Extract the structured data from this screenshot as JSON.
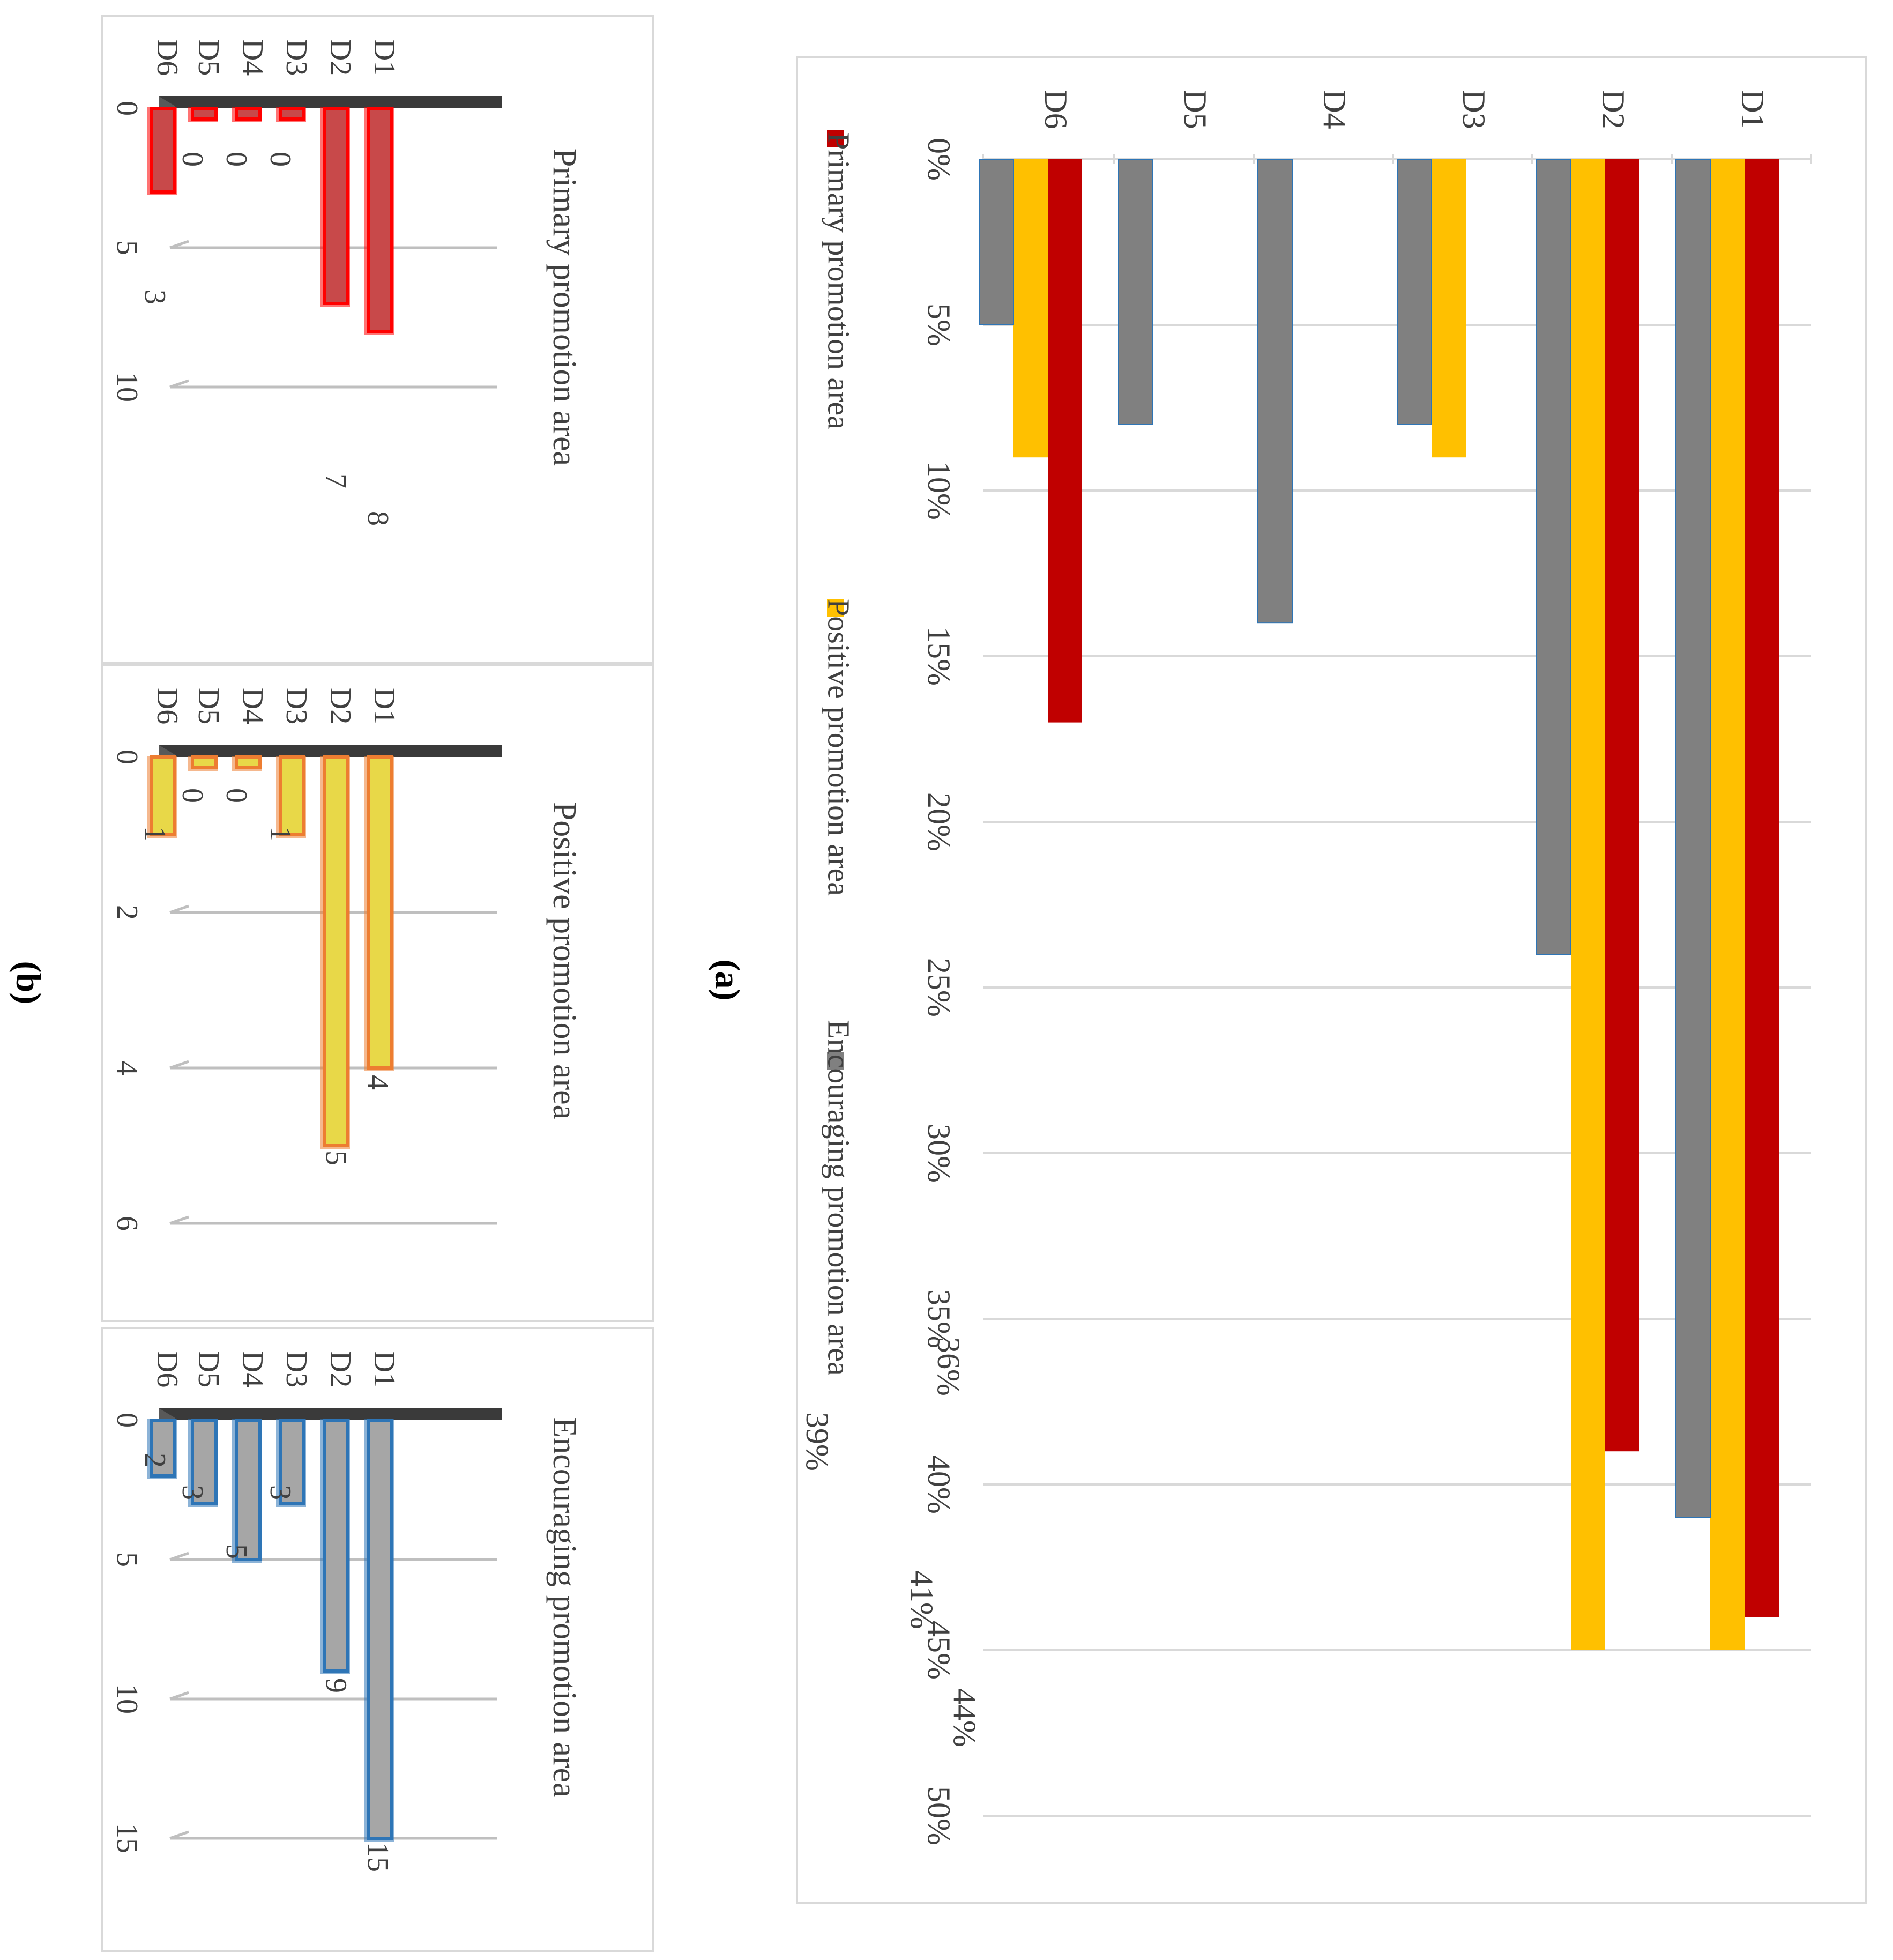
{
  "captions": {
    "a": "(a)",
    "b": "(b)"
  },
  "colors": {
    "primary": "#c00000",
    "positive": "#ffc000",
    "encouraging": "#808080",
    "grid": "#d9d9d9",
    "text": "#404040"
  },
  "chart_data": [
    {
      "type": "bar",
      "orientation": "horizontal",
      "image_rotation": "90deg clockwise",
      "categories": [
        "D1",
        "D2",
        "D3",
        "D4",
        "D5",
        "D6"
      ],
      "series": [
        {
          "name": "Primary promotion area",
          "values": [
            44,
            39,
            null,
            null,
            null,
            17
          ],
          "labels": [
            "44%",
            "39%",
            "",
            "",
            "",
            "17%"
          ],
          "color": "#c00000"
        },
        {
          "name": "Positive promotion area",
          "values": [
            45,
            45,
            9,
            0,
            0,
            9
          ],
          "labels": [
            "",
            "45%",
            "9%",
            "0%",
            "0%",
            "9%"
          ],
          "color": "#ffc000"
        },
        {
          "name": "Encouraging promotion area",
          "values": [
            41,
            24,
            8,
            14,
            8,
            5
          ],
          "labels": [
            "41%",
            "24%",
            "8%",
            "14%",
            "8%",
            "5%"
          ],
          "color": "#808080"
        }
      ],
      "extra_labels": [
        "36%",
        "0%",
        "0%"
      ],
      "value_axis": {
        "min": 0,
        "max": 50,
        "step": 5,
        "unit": "%",
        "ticks": [
          "0%",
          "5%",
          "10%",
          "15%",
          "20%",
          "25%",
          "30%",
          "35%",
          "40%",
          "45%",
          "50%"
        ]
      },
      "grid": true,
      "legend_position": "bottom"
    },
    {
      "type": "bar",
      "orientation": "horizontal",
      "style": "3d",
      "title": "Primary promotion area",
      "categories": [
        "D1",
        "D2",
        "D3",
        "D4",
        "D5",
        "D6"
      ],
      "values": [
        8,
        7,
        0,
        0,
        0,
        3
      ],
      "value_axis": {
        "min": 0,
        "max": 10,
        "ticks": [
          "0",
          "5",
          "10"
        ]
      },
      "fill": "#c8494a",
      "edge": "#ff0000"
    },
    {
      "type": "bar",
      "orientation": "horizontal",
      "style": "3d",
      "title": "Positive promotion area",
      "categories": [
        "D1",
        "D2",
        "D3",
        "D4",
        "D5",
        "D6"
      ],
      "values": [
        4,
        5,
        1,
        0,
        0,
        1
      ],
      "value_axis": {
        "min": 0,
        "max": 6,
        "ticks": [
          "0",
          "2",
          "4",
          "6"
        ]
      },
      "fill": "#e8d848",
      "edge": "#ed7d31"
    },
    {
      "type": "bar",
      "orientation": "horizontal",
      "style": "3d",
      "title": "Encouraging promotion area",
      "categories": [
        "D1",
        "D2",
        "D3",
        "D4",
        "D5",
        "D6"
      ],
      "values": [
        15,
        9,
        3,
        5,
        3,
        2
      ],
      "value_axis": {
        "min": 0,
        "max": 15,
        "ticks": [
          "0",
          "5",
          "10",
          "15"
        ]
      },
      "fill": "#a6a6a6",
      "edge": "#2e75b6"
    }
  ]
}
